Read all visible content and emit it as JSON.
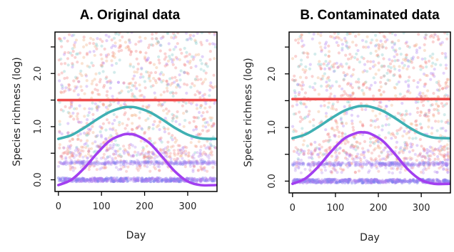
{
  "colors": {
    "red": "#ee4b4b",
    "teal": "#3fb0b3",
    "purple": "#a23ff0",
    "points_red": "#f08080",
    "points_teal": "#80c8c8",
    "points_purple": "#b080f0",
    "points_blue": "#8080f0",
    "points_orange": "#f0b080"
  },
  "chart_data": [
    {
      "type": "line",
      "title": "A. Original data",
      "xlabel": "Day",
      "ylabel": "Species richness (log)",
      "xlim": [
        -8,
        368
      ],
      "ylim": [
        -0.22,
        2.78
      ],
      "xticks": [
        0,
        100,
        200,
        300
      ],
      "yticks": [
        0.0,
        1.0,
        2.0
      ],
      "ytick_labels": [
        "0.0",
        "1.0",
        "2.0"
      ],
      "grid": false,
      "legend": "none",
      "series": [
        {
          "color_key": "red",
          "x": [
            0,
            60,
            120,
            180,
            240,
            300,
            365
          ],
          "values": [
            1.5,
            1.5,
            1.5,
            1.5,
            1.5,
            1.5,
            1.5
          ]
        },
        {
          "color_key": "teal",
          "x": [
            0,
            30,
            60,
            90,
            120,
            150,
            165,
            180,
            210,
            240,
            270,
            300,
            330,
            365
          ],
          "values": [
            0.77,
            0.84,
            0.98,
            1.14,
            1.28,
            1.36,
            1.37,
            1.36,
            1.28,
            1.14,
            0.98,
            0.85,
            0.78,
            0.77
          ]
        },
        {
          "color_key": "purple",
          "x": [
            0,
            30,
            60,
            90,
            120,
            150,
            165,
            180,
            210,
            240,
            270,
            300,
            330,
            365
          ],
          "values": [
            -0.1,
            0.0,
            0.22,
            0.5,
            0.74,
            0.85,
            0.86,
            0.84,
            0.7,
            0.44,
            0.16,
            -0.03,
            -0.1,
            -0.1
          ]
        }
      ]
    },
    {
      "type": "line",
      "title": "B. Contaminated data",
      "xlabel": "Day",
      "ylabel": "Species richness (log)",
      "xlim": [
        -8,
        368
      ],
      "ylim": [
        -0.22,
        2.78
      ],
      "xticks": [
        0,
        100,
        200,
        300
      ],
      "yticks": [
        0.0,
        1.0,
        2.0
      ],
      "ytick_labels": [
        "0.0",
        "1.0",
        "2.0"
      ],
      "grid": false,
      "legend": "none",
      "series": [
        {
          "color_key": "red",
          "x": [
            0,
            60,
            120,
            180,
            240,
            300,
            365
          ],
          "values": [
            1.53,
            1.53,
            1.53,
            1.53,
            1.53,
            1.53,
            1.53
          ]
        },
        {
          "color_key": "teal",
          "x": [
            0,
            30,
            60,
            90,
            120,
            150,
            165,
            180,
            210,
            240,
            270,
            300,
            330,
            365
          ],
          "values": [
            0.8,
            0.87,
            1.01,
            1.17,
            1.31,
            1.39,
            1.4,
            1.39,
            1.31,
            1.17,
            1.01,
            0.88,
            0.81,
            0.8
          ]
        },
        {
          "color_key": "purple",
          "x": [
            0,
            30,
            60,
            90,
            120,
            150,
            165,
            180,
            210,
            240,
            270,
            300,
            330,
            365
          ],
          "values": [
            -0.05,
            0.05,
            0.27,
            0.55,
            0.79,
            0.9,
            0.91,
            0.89,
            0.75,
            0.49,
            0.21,
            0.02,
            -0.05,
            -0.05
          ]
        }
      ]
    }
  ]
}
